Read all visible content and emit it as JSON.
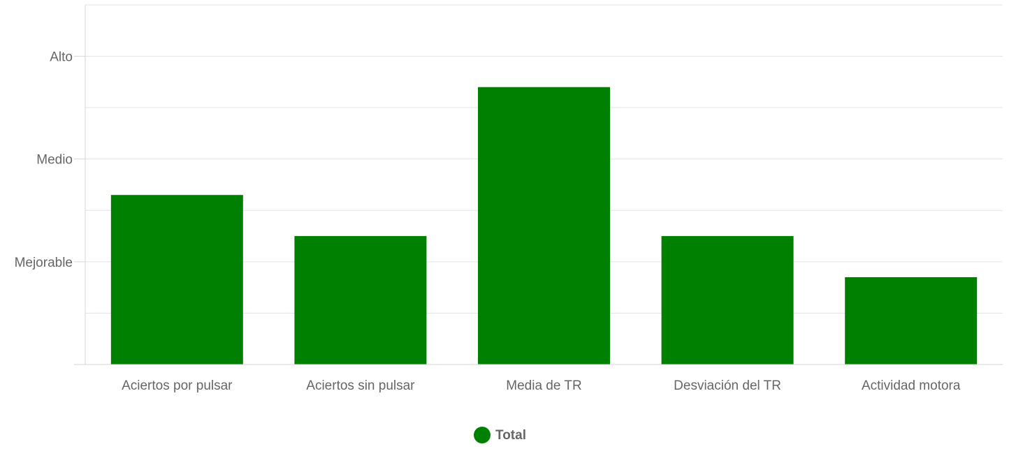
{
  "chart_data": {
    "type": "bar",
    "categories": [
      "Aciertos por pulsar",
      "Aciertos sin pulsar",
      "Media de TR",
      "Desviación del TR",
      "Actividad motora"
    ],
    "series": [
      {
        "name": "Total",
        "color": "#008000",
        "values": [
          1.65,
          1.25,
          2.7,
          1.25,
          0.85
        ]
      }
    ],
    "ylim": [
      0,
      3.5
    ],
    "y_tick_values": [
      1,
      2,
      3
    ],
    "y_tick_labels": [
      "Mejorable",
      "Medio",
      "Alto"
    ],
    "y_minor_gridlines": [
      0.5,
      1.5,
      2.5
    ],
    "grid": true,
    "legend_position": "bottom-center"
  }
}
